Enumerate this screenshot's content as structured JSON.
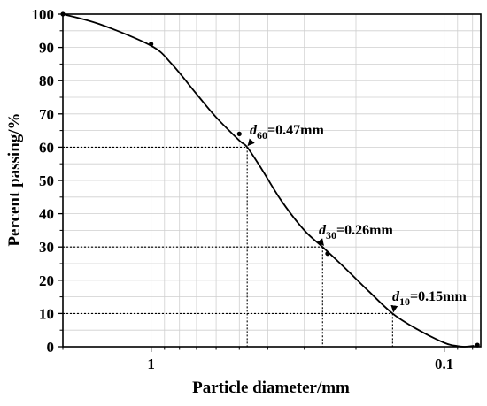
{
  "chart_data": {
    "type": "line",
    "title": "",
    "xlabel": "Particle diameter/mm",
    "ylabel": "Percent passing/%",
    "x_scale": "log",
    "x_reversed": true,
    "xlim": [
      2,
      0.075
    ],
    "ylim": [
      0,
      100
    ],
    "x_ticks": [
      1,
      0.1
    ],
    "x_tick_labels": [
      "1",
      "0.1"
    ],
    "y_ticks": [
      0,
      10,
      20,
      30,
      40,
      50,
      60,
      70,
      80,
      90,
      100
    ],
    "y_tick_labels": [
      "0",
      "10",
      "20",
      "30",
      "40",
      "50",
      "60",
      "70",
      "80",
      "90",
      "100"
    ],
    "grid": true,
    "legend": "none",
    "series": [
      {
        "color": "#000000",
        "curve_x": [
          2,
          1.5,
          1.0,
          0.85,
          0.7,
          0.6,
          0.5,
          0.47,
          0.42,
          0.36,
          0.3,
          0.26,
          0.22,
          0.18,
          0.15,
          0.125,
          0.1,
          0.09,
          0.085,
          0.079
        ],
        "curve_y": [
          100,
          97,
          90.5,
          85,
          76,
          69,
          62,
          60,
          53.5,
          44,
          35,
          30,
          24,
          16.5,
          10,
          5.5,
          1.2,
          0.2,
          0,
          0.3
        ],
        "marker_x": [
          2,
          1.0,
          0.5,
          0.25,
          0.077
        ],
        "marker_y": [
          100,
          91,
          64,
          28,
          0.5
        ]
      }
    ],
    "annotations": [
      {
        "name": "d60",
        "symbol": "d",
        "subscript": "60",
        "value_text": "=0.47mm",
        "x": 0.47,
        "y": 60
      },
      {
        "name": "d30",
        "symbol": "d",
        "subscript": "30",
        "value_text": "=0.26mm",
        "x": 0.26,
        "y": 30
      },
      {
        "name": "d10",
        "symbol": "d",
        "subscript": "10",
        "value_text": "=0.15mm",
        "x": 0.15,
        "y": 10
      }
    ]
  }
}
